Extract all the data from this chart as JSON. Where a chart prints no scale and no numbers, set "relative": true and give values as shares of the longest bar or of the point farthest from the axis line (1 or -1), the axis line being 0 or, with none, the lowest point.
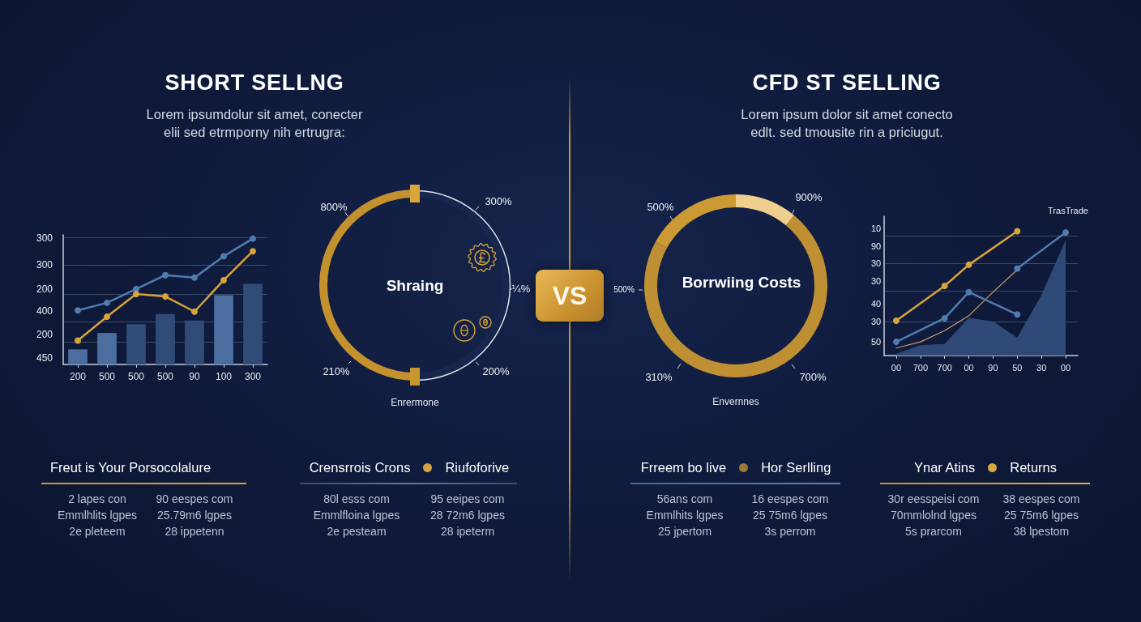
{
  "chart_data": [
    {
      "type": "other",
      "title": "SHORT SELLNG",
      "subtitle": "Lorem ipsumdolur sit amet, conecter\nelii sed etrmporny nih ertrugra:"
    },
    {
      "type": "bar",
      "relative": true,
      "categories": [
        "200",
        "500",
        "500",
        "500",
        "90",
        "100",
        "300"
      ],
      "marker": "circle",
      "annotations": [
        "300",
        "300",
        "200",
        "400",
        "200",
        "450"
      ],
      "ref_lines": [
        {
          "axis": "y",
          "value": 0.18,
          "color": "#3a4966"
        },
        {
          "axis": "y",
          "value": 0.34,
          "color": "#3a4966"
        },
        {
          "axis": "y",
          "value": 0.56,
          "color": "#3a4966"
        },
        {
          "axis": "y",
          "value": 0.79,
          "color": "#3a4966"
        },
        {
          "axis": "y",
          "value": 1.01,
          "color": "#3a4966"
        }
      ],
      "series": [
        {
          "type": "bar",
          "colors": [
            "#4b6e9f",
            "#4b6e9f",
            "#2f4b76",
            "#2f4b76",
            "#2f4b76",
            "#4b6e9f",
            "#2f4b76"
          ],
          "values": [
            0.12,
            0.25,
            0.32,
            0.4,
            0.35,
            0.55,
            0.64
          ]
        },
        {
          "type": "line",
          "color": "#4f7cb0",
          "values": [
            0.43,
            0.49,
            0.6,
            0.71,
            0.69,
            0.86,
            1
          ]
        },
        {
          "type": "line",
          "color": "#d9a23a",
          "values": [
            0.19,
            0.38,
            0.56,
            0.54,
            0.42,
            0.67,
            0.9
          ]
        }
      ]
    },
    {
      "type": "donut",
      "title": "Shraing",
      "subtitle": "Enrermone",
      "categories": [
        null,
        null
      ],
      "values": [
        50,
        50
      ],
      "colors": [
        "#17264d",
        "#c4912f"
      ],
      "annotations": [
        "300%",
        "¼%",
        "200%",
        "210%",
        "800%"
      ]
    },
    {
      "type": "other",
      "title": "VS"
    },
    {
      "type": "other",
      "title": "CFD ST SELLING",
      "subtitle": "Lorem ipsum dolor sit amet conecto\nedlt. sed tmousite rin a priciugut."
    },
    {
      "type": "donut",
      "title": "Borrwiing Costs",
      "subtitle": "Envernnes",
      "categories": [
        null,
        null,
        null
      ],
      "values": [
        11,
        72,
        17
      ],
      "colors": [
        "#f0cf8e",
        "#bf8f33",
        "#cc9a35"
      ],
      "annotations": [
        "900%",
        "700%",
        "310%",
        "500%",
        "500%"
      ]
    },
    {
      "type": "line",
      "relative": true,
      "categories": [
        "00",
        "700",
        "700",
        "00",
        "90",
        "50",
        "30",
        "00"
      ],
      "marker": "circle",
      "annotations": [
        "TrasTrade",
        "10",
        "90",
        "30",
        "30",
        "40",
        "30",
        "50"
      ],
      "ref_lines": [
        {
          "axis": "y",
          "value": 0.27,
          "color": "#3a4966"
        },
        {
          "axis": "y",
          "value": 0.52,
          "color": "#3a4966"
        },
        {
          "axis": "y",
          "value": 0.74,
          "color": "#3a4966"
        },
        {
          "axis": "y",
          "value": 0.96,
          "color": "#3a4966"
        }
      ],
      "series": [
        {
          "type": "area",
          "marker": "none",
          "color": "#2f4a78",
          "values": [
            0.01,
            0.08,
            0.09,
            0.3,
            0.27,
            0.14,
            0.48,
            0.92
          ]
        },
        {
          "color": "#c9a06a",
          "marker": "none",
          "values": [
            0.06,
            0.11,
            0.2,
            0.32,
            0.51,
            0.69,
            null,
            null
          ]
        },
        {
          "color": "#4f7cb0",
          "values": [
            0.11,
            null,
            0.3,
            0.51,
            null,
            0.33,
            null,
            null
          ]
        },
        {
          "color": "#4f7cb0",
          "values": [
            null,
            null,
            null,
            null,
            null,
            0.7,
            null,
            0.99
          ]
        },
        {
          "color": "#d9a23a",
          "values": [
            0.28,
            null,
            0.56,
            0.73,
            null,
            1,
            null,
            null
          ]
        }
      ]
    },
    {
      "type": "other",
      "title": "Freut is Your Porsocolalure",
      "annotations": [
        "2 lapes con",
        "90 eespes com",
        "Emmlhlits lgpes",
        "25.79m6 lgpes",
        "2e pleteem",
        "28 ippetenn"
      ]
    },
    {
      "type": "other",
      "title": "Crensrrois Crons",
      "subtitle": "Riufoforive",
      "annotations": [
        "80l esss com",
        "95 eeipes com",
        "Emmlfloina lgpes",
        "28 72m6 lgpes",
        "2e pesteam",
        "28 ipeterm"
      ]
    },
    {
      "type": "other",
      "title": "Frreem bo live",
      "subtitle": "Hor Serlling",
      "annotations": [
        "56ans com",
        "16 eespes com",
        "Emmlhits lgpes",
        "25 75m6 lgpes",
        "25 jpertom",
        "3s perrom"
      ]
    },
    {
      "type": "other",
      "title": "Ynar Atins",
      "subtitle": "Returns",
      "annotations": [
        "30r eesspeisi com",
        "38 eespes com",
        "70mmlolnd lgpes",
        "25 75m6 lgpes",
        "5s prarcom",
        "38 lpestom"
      ]
    }
  ]
}
